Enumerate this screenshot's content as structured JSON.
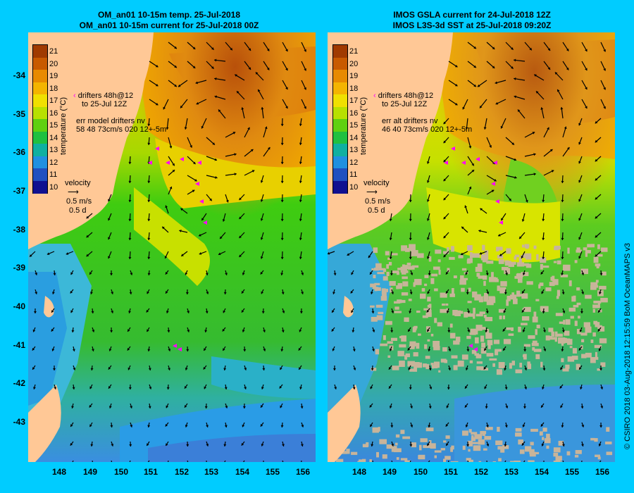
{
  "left_panel": {
    "title_line1": "OM_an01 10-15m temp. 25-Jul-2018",
    "title_line2": "OM_an01 10-15m current for 25-Jul-2018 00Z",
    "drifters_line1": "drifters 48h@12",
    "drifters_line2": "to 25-Jul 12Z",
    "err_line1": "err model drifters nv",
    "err_line2": "58 48 73cm/s 020 12+-5m"
  },
  "right_panel": {
    "title_line1": "IMOS GSLA current for 24-Jul-2018 12Z",
    "title_line2": "IMOS L3S-3d SST at 25-Jul-2018 09:20Z",
    "drifters_line1": "drifters 48h@12",
    "drifters_line2": "to 25-Jul 12Z",
    "err_line1": "err alt drifters nv",
    "err_line2": "46 40 73cm/s 020 12+-5m"
  },
  "colorbar": {
    "label": "temperature (°C)",
    "ticks": [
      "21",
      "20",
      "19",
      "18",
      "17",
      "16",
      "15",
      "14",
      "13",
      "12",
      "11",
      "10"
    ]
  },
  "velocity_key": {
    "title": "velocity",
    "speed": "0.5 m/s",
    "duration": "0.5 d"
  },
  "y_axis_ticks": [
    "-34",
    "-35",
    "-36",
    "-37",
    "-38",
    "-39",
    "-40",
    "-41",
    "-42",
    "-43"
  ],
  "x_axis_ticks": [
    "148",
    "149",
    "150",
    "151",
    "152",
    "153",
    "154",
    "155",
    "156"
  ],
  "copyright": "© CSIRO 2018   03-Aug-2018 12:15:59 BoM OceanMAPS v3",
  "colors": {
    "background": "#00ccff",
    "land": "#ffc896",
    "drifter": "#ff00ff",
    "cloud": "#c8b49a"
  }
}
